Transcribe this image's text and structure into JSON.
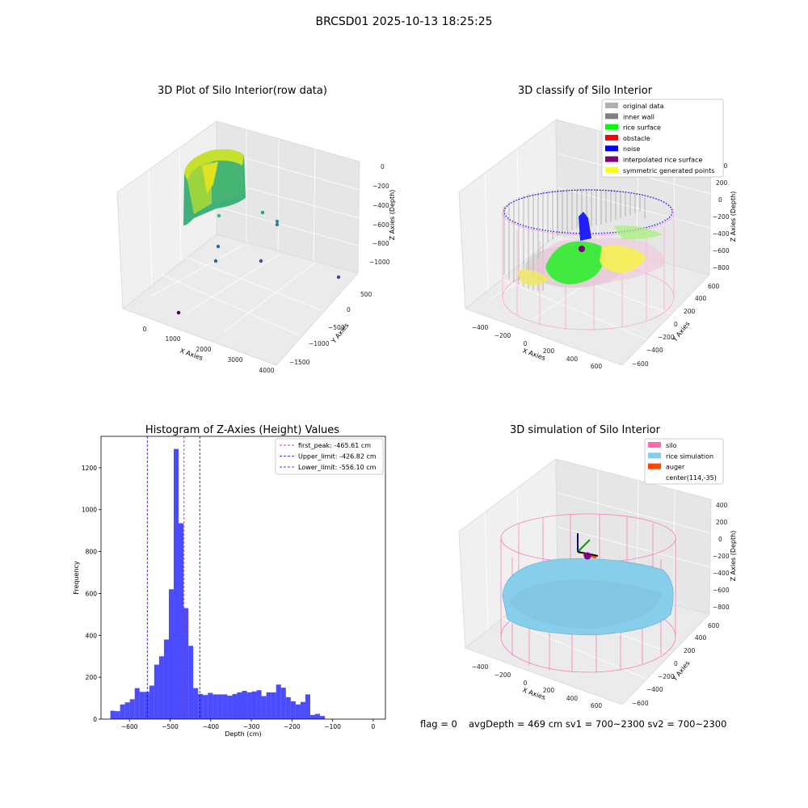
{
  "suptitle": "BRCSD01 2025-10-13 18:25:25",
  "footer": {
    "flag": "flag = 0",
    "stats": "avgDepth = 469 cm  sv1 = 700~2300  sv2 = 700~2300"
  },
  "chart_data": [
    {
      "type": "scatter",
      "projection": "3d",
      "title": "3D Plot of Silo Interior(row data)",
      "xlabel": "X Axies",
      "ylabel": "Y Axies",
      "zlabel": "Z Axies (Depth)",
      "x_ticks": [
        "0",
        "1000",
        "2000",
        "3000",
        "4000"
      ],
      "y_ticks": [
        "500",
        "0",
        "−500",
        "−1000",
        "−1500"
      ],
      "z_ticks": [
        "0",
        "−200",
        "−400",
        "−600",
        "−800",
        "−1000"
      ],
      "colormap": "viridis"
    },
    {
      "type": "scatter",
      "projection": "3d",
      "title": "3D classify of Silo Interior",
      "xlabel": "X Axies",
      "ylabel": "Y Axies",
      "zlabel": "Z Axies (Depth)",
      "x_ticks": [
        "−400",
        "−200",
        "0",
        "200",
        "400",
        "600"
      ],
      "y_ticks": [
        "600",
        "400",
        "200",
        "0",
        "−200",
        "−400",
        "−600"
      ],
      "z_ticks": [
        "400",
        "200",
        "0",
        "−200",
        "−400",
        "−600",
        "−800"
      ],
      "legend_position": "top-right",
      "legend": [
        {
          "label": "original data",
          "color": "#b0b0b0"
        },
        {
          "label": "inner wall",
          "color": "#808080"
        },
        {
          "label": "rice surface",
          "color": "#00ff00"
        },
        {
          "label": "obstacle",
          "color": "#ff0000"
        },
        {
          "label": "noise",
          "color": "#0000ff"
        },
        {
          "label": "interpolated rice surface",
          "color": "#800080"
        },
        {
          "label": "symmetric generated points",
          "color": "#ffff00"
        }
      ]
    },
    {
      "type": "bar",
      "title": "Histogram of Z-Axies (Height) Values",
      "xlabel": "Depth (cm)",
      "ylabel": "Frequency",
      "bar_color": "#0000ff",
      "x_ticks": [
        -600,
        -500,
        -400,
        -300,
        -200,
        -100,
        0
      ],
      "y_ticks": [
        0,
        200,
        400,
        600,
        800,
        1000,
        1200
      ],
      "xlim": [
        -670,
        30
      ],
      "ylim": [
        0,
        1350
      ],
      "bin_width": 12,
      "bins_start": -647,
      "values": [
        40,
        38,
        70,
        80,
        95,
        148,
        130,
        130,
        160,
        260,
        300,
        380,
        620,
        1290,
        935,
        530,
        350,
        148,
        120,
        115,
        125,
        118,
        118,
        118,
        112,
        120,
        128,
        135,
        128,
        132,
        138,
        110,
        128,
        128,
        165,
        150,
        105,
        85,
        70,
        82,
        118,
        20,
        25,
        15
      ],
      "legend_position": "top-right",
      "lines": [
        {
          "label": "first_peak: -465.61 cm",
          "x": -465.61,
          "color": "#ff0000"
        },
        {
          "label": "Upper_limit: -426.82 cm",
          "x": -426.82,
          "color": "#0000ff"
        },
        {
          "label": "Lower_limit: -556.10 cm",
          "x": -556.1,
          "color": "#0000ff"
        }
      ]
    },
    {
      "type": "scatter",
      "projection": "3d",
      "title": "3D simulation of Silo Interior",
      "xlabel": "X Axies",
      "ylabel": "Y Axies",
      "zlabel": "Z Axies (Depth)",
      "x_ticks": [
        "−400",
        "−200",
        "0",
        "200",
        "400",
        "600"
      ],
      "y_ticks": [
        "600",
        "400",
        "200",
        "0",
        "−200",
        "−400",
        "−600"
      ],
      "z_ticks": [
        "400",
        "200",
        "0",
        "−200",
        "−400",
        "−600",
        "−800"
      ],
      "legend_position": "top-right",
      "legend": [
        {
          "label": "silo",
          "color": "#ff69b4"
        },
        {
          "label": "rice simulation",
          "color": "#87ceeb"
        },
        {
          "label": "auger",
          "color": "#ff4500"
        },
        {
          "label": "center(114,-35)",
          "color": "#ffffff"
        }
      ]
    }
  ]
}
